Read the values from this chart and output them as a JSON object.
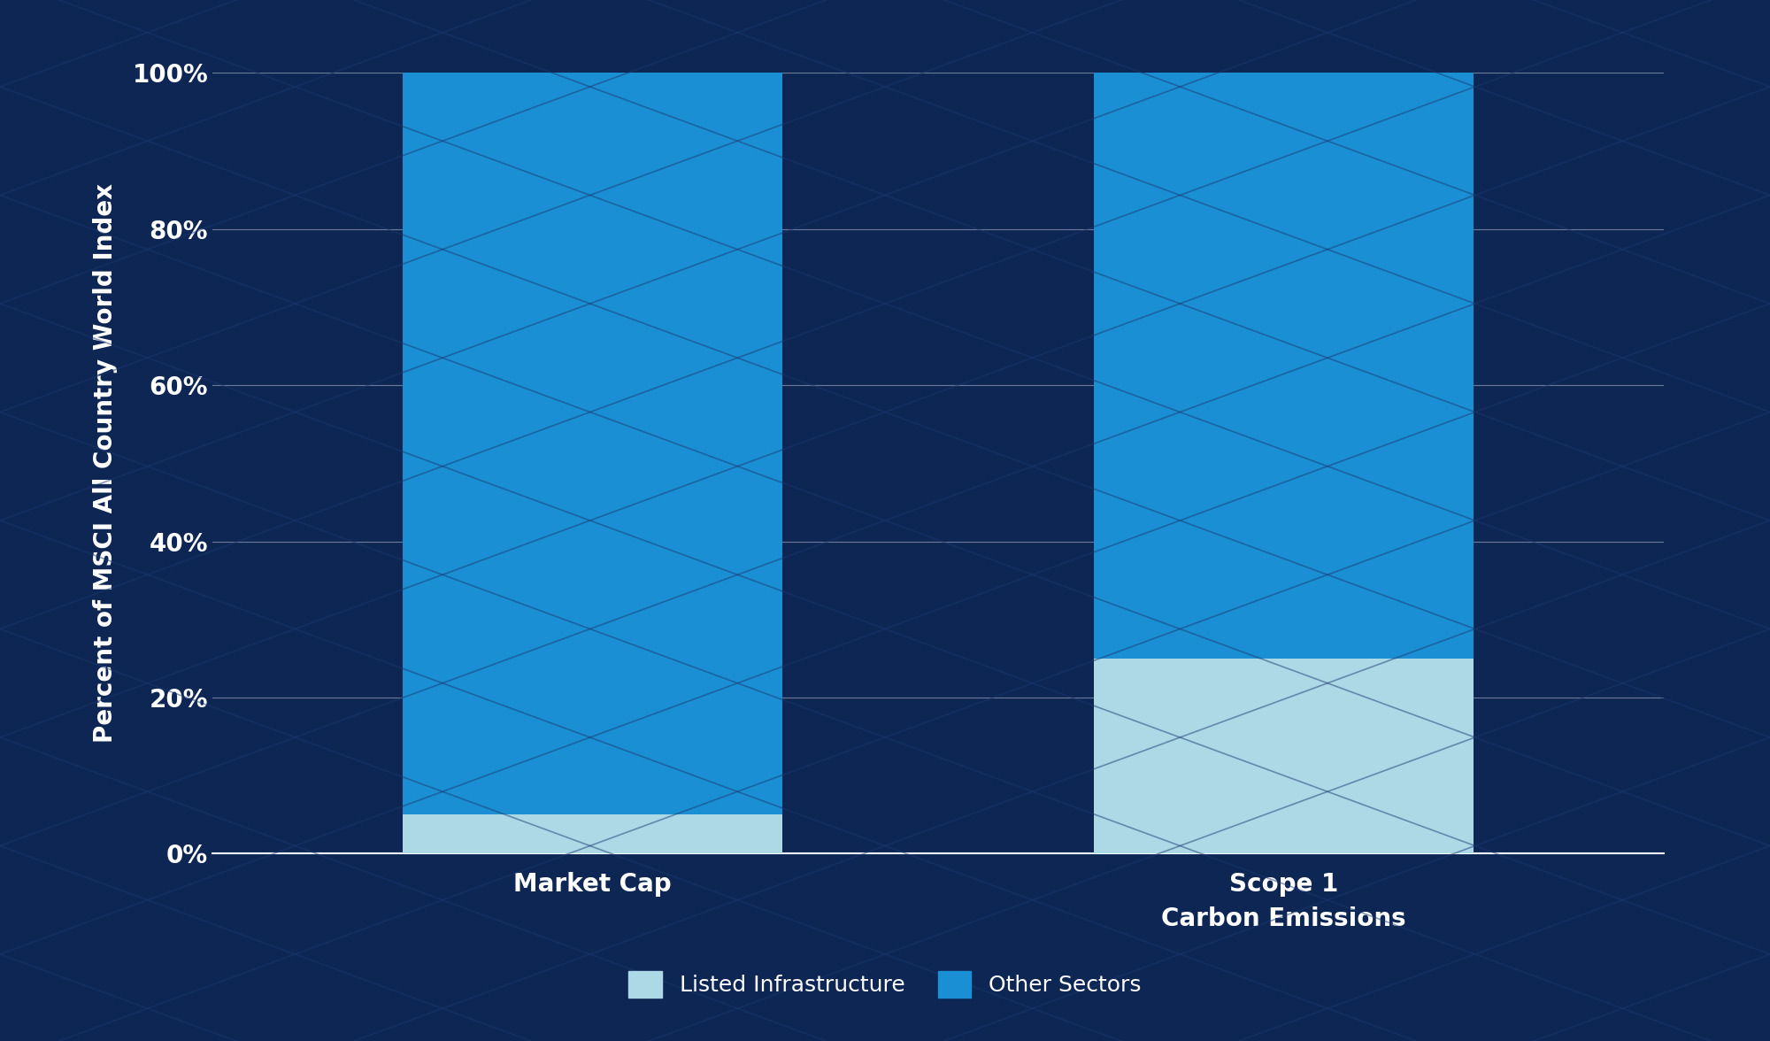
{
  "categories": [
    "Market Cap",
    "Scope 1\nCarbon Emissions"
  ],
  "listed_infrastructure": [
    5,
    25
  ],
  "other_sectors": [
    95,
    75
  ],
  "color_listed_infrastructure": "#ADD8E6",
  "color_other_sectors": "#1B8FD4",
  "background_color": "#0D2654",
  "text_color": "#FFFFFF",
  "grid_color": "#FFFFFF",
  "ylabel": "Percent of MSCI All Country World Index",
  "ylim": [
    0,
    100
  ],
  "yticks": [
    0,
    20,
    40,
    60,
    80,
    100
  ],
  "ytick_labels": [
    "0%",
    "20%",
    "40%",
    "60%",
    "80%",
    "100%"
  ],
  "legend_labels": [
    "Listed Infrastructure",
    "Other Sectors"
  ],
  "bar_width": 0.55,
  "axis_label_fontsize": 20,
  "tick_fontsize": 20,
  "legend_fontsize": 18
}
